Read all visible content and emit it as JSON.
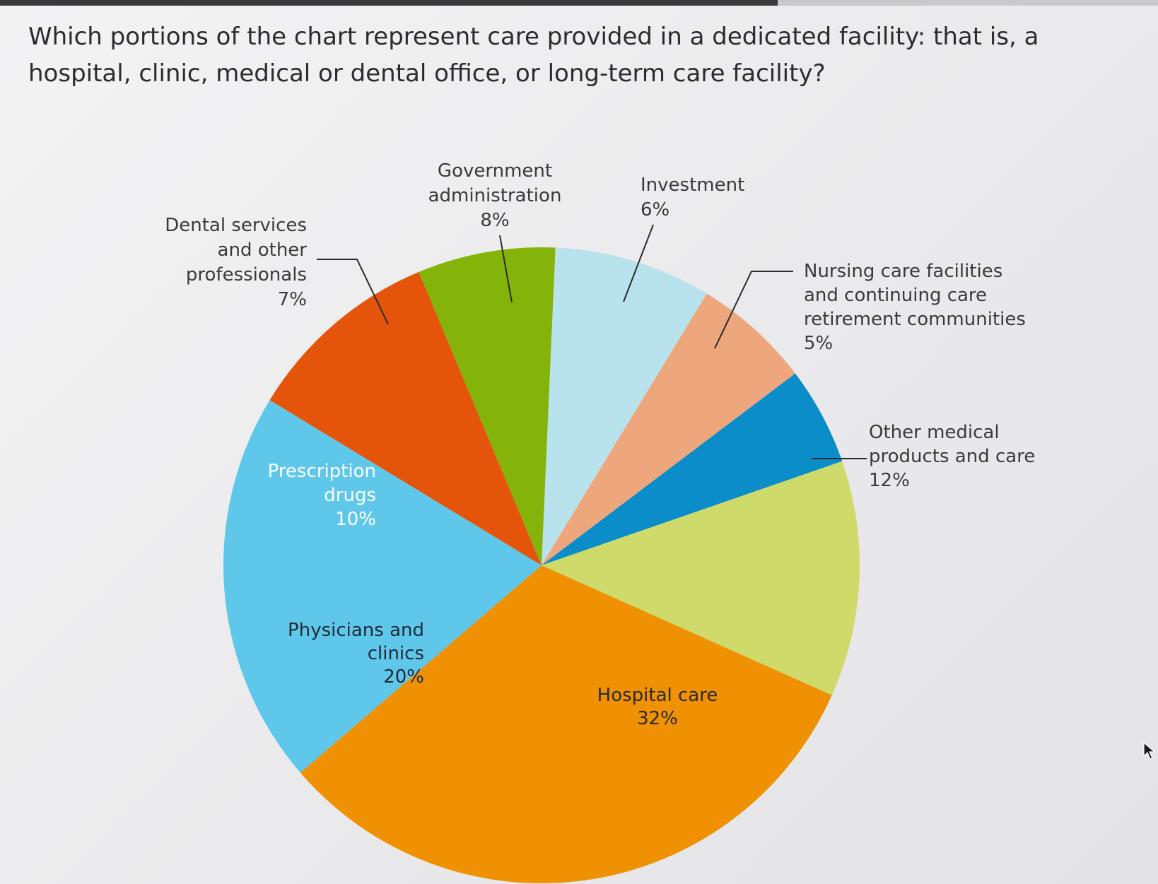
{
  "question": "Which portions of the chart represent care provided in a dedicated facility: that is, a hospital, clinic, medical or dental office, or long-term care facility?",
  "chart_data": {
    "type": "pie",
    "title": "",
    "slices": [
      {
        "lines": [
          "Government",
          "administration",
          "8%"
        ],
        "value": 8,
        "color": "#b9e3ec",
        "label_color": "#3a3a3a"
      },
      {
        "lines": [
          "Investment",
          "6%"
        ],
        "value": 6,
        "color": "#eea77d",
        "label_color": "#3a3a3a"
      },
      {
        "lines": [
          "Nursing care facilities",
          "and continuing care",
          "retirement communities",
          "5%"
        ],
        "value": 5,
        "color": "#0a8dc9",
        "label_color": "#3a3a3a"
      },
      {
        "lines": [
          "Other medical",
          "products and care",
          "12%"
        ],
        "value": 12,
        "color": "#cedb6b",
        "label_color": "#3a3a3a"
      },
      {
        "lines": [
          "Hospital care",
          "32%"
        ],
        "value": 32,
        "color": "#ef9103",
        "label_color": "#2a2a2a"
      },
      {
        "lines": [
          "Physicians and",
          "clinics",
          "20%"
        ],
        "value": 20,
        "color": "#5fc8ea",
        "label_color": "#1f2a36"
      },
      {
        "lines": [
          "Prescription",
          "drugs",
          "10%"
        ],
        "value": 10,
        "color": "#e4540b",
        "label_color": "#ffffff"
      },
      {
        "lines": [
          "Dental services",
          "and other",
          "professionals",
          "7%"
        ],
        "value": 7,
        "color": "#84b30a",
        "label_color": "#3a3a3a"
      }
    ]
  }
}
